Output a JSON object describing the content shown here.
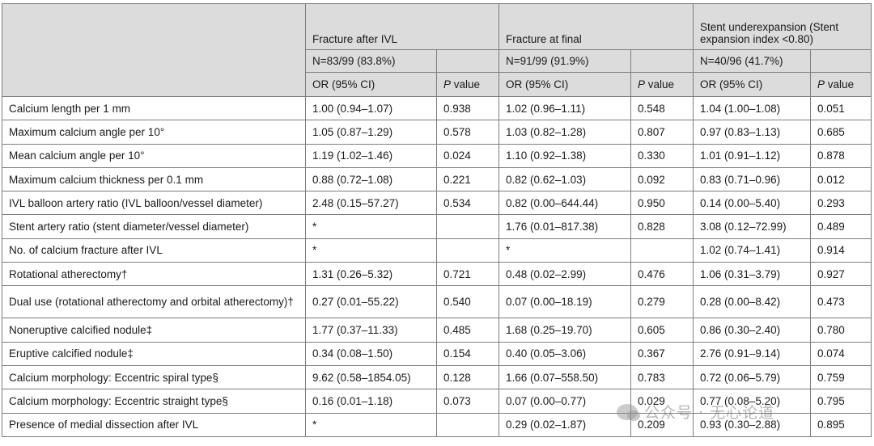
{
  "header": {
    "groups": [
      {
        "title": "Fracture after IVL",
        "n": "N=83/99 (83.8%)"
      },
      {
        "title": "Fracture at final",
        "n": "N=91/99 (91.9%)"
      },
      {
        "title": "Stent underexpansion (Stent expansion index <0.80)",
        "n": "N=40/96 (41.7%)"
      }
    ],
    "or_label": "OR (95% CI)",
    "p_label_italic": "P",
    "p_label_rest": " value"
  },
  "rows": [
    {
      "label": "Calcium length per 1 mm",
      "or1": "1.00 (0.94–1.07)",
      "p1": "0.938",
      "or2": "1.02 (0.96–1.11)",
      "p2": "0.548",
      "or3": "1.04 (1.00–1.08)",
      "p3": "0.051"
    },
    {
      "label": "Maximum calcium angle per 10°",
      "or1": "1.05 (0.87–1.29)",
      "p1": "0.578",
      "or2": "1.03 (0.82–1.28)",
      "p2": "0.807",
      "or3": "0.97 (0.83–1.13)",
      "p3": "0.685"
    },
    {
      "label": "Mean calcium angle per 10°",
      "or1": "1.19 (1.02–1.46)",
      "p1": "0.024",
      "or2": "1.10 (0.92–1.38)",
      "p2": "0.330",
      "or3": "1.01 (0.91–1.12)",
      "p3": "0.878"
    },
    {
      "label": "Maximum calcium thickness per 0.1 mm",
      "or1": "0.88 (0.72–1.08)",
      "p1": "0.221",
      "or2": "0.82 (0.62–1.03)",
      "p2": "0.092",
      "or3": "0.83 (0.71–0.96)",
      "p3": "0.012"
    },
    {
      "label": "IVL balloon artery ratio (IVL balloon/vessel diameter)",
      "or1": "2.48 (0.15–57.27)",
      "p1": "0.534",
      "or2": "0.82 (0.00–644.44)",
      "p2": "0.950",
      "or3": "0.14 (0.00–5.40)",
      "p3": "0.293"
    },
    {
      "label": "Stent artery ratio (stent diameter/vessel diameter)",
      "or1": "*",
      "p1": "",
      "or2": "1.76 (0.01–817.38)",
      "p2": "0.828",
      "or3": "3.08 (0.12–72.99)",
      "p3": "0.489"
    },
    {
      "label": "No. of calcium fracture after IVL",
      "or1": "*",
      "p1": "",
      "or2": "*",
      "p2": "",
      "or3": "1.02 (0.74–1.41)",
      "p3": "0.914"
    },
    {
      "label": "Rotational atherectomy†",
      "or1": "1.31 (0.26–5.32)",
      "p1": "0.721",
      "or2": "0.48 (0.02–2.99)",
      "p2": "0.476",
      "or3": "1.06 (0.31–3.79)",
      "p3": "0.927"
    },
    {
      "label": "Dual use (rotational atherectomy and orbital atherectomy)†",
      "or1": "0.27 (0.01–55.22)",
      "p1": "0.540",
      "or2": "0.07 (0.00–18.19)",
      "p2": "0.279",
      "or3": "0.28 (0.00–8.42)",
      "p3": "0.473"
    },
    {
      "label": "Noneruptive calcified nodule‡",
      "or1": "1.77 (0.37–11.33)",
      "p1": "0.485",
      "or2": "1.68 (0.25–19.70)",
      "p2": "0.605",
      "or3": "0.86 (0.30–2.40)",
      "p3": "0.780"
    },
    {
      "label": "Eruptive calcified nodule‡",
      "or1": "0.34 (0.08–1.50)",
      "p1": "0.154",
      "or2": "0.40 (0.05–3.06)",
      "p2": "0.367",
      "or3": "2.76 (0.91–9.14)",
      "p3": "0.074"
    },
    {
      "label": "Calcium morphology: Eccentric spiral type§",
      "or1": "9.62 (0.58–1854.05)",
      "p1": "0.128",
      "or2": "1.66 (0.07–558.50)",
      "p2": "0.783",
      "or3": "0.72 (0.06–5.79)",
      "p3": "0.759"
    },
    {
      "label": "Calcium morphology: Eccentric straight type§",
      "or1": "0.16 (0.01–1.18)",
      "p1": "0.073",
      "or2": "0.07 (0.00–0.77)",
      "p2": "0.029",
      "or3": "0.77 (0.08–5.20)",
      "p3": "0.795"
    },
    {
      "label": "Presence of medial dissection after IVL",
      "or1": "*",
      "p1": "",
      "or2": "0.29 (0.02–1.87)",
      "p2": "0.209",
      "or3": "0.93 (0.30–2.88)",
      "p3": "0.895"
    }
  ],
  "watermark": {
    "icon": "wechat-icon",
    "text": "公众号 · 无心论道"
  }
}
